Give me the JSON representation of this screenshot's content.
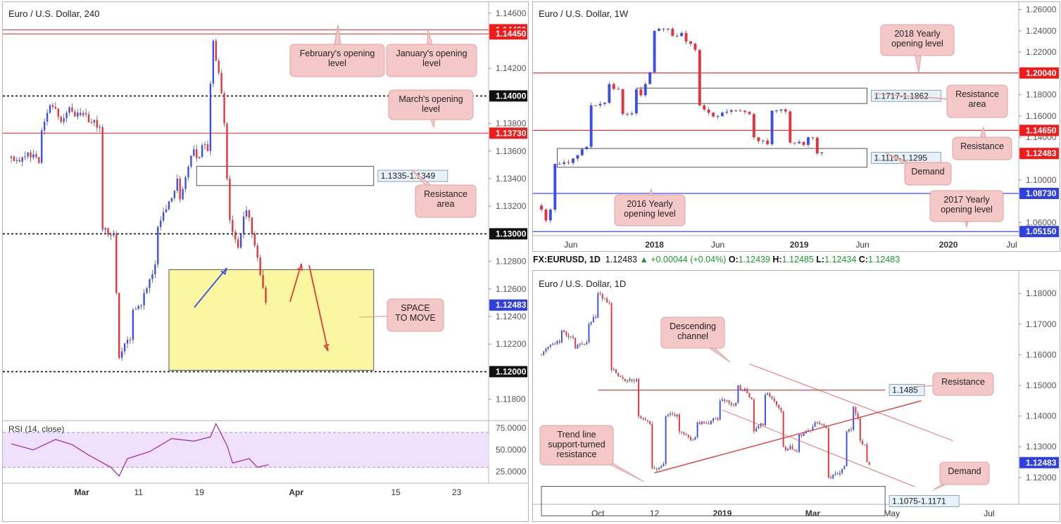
{
  "colors": {
    "bull": "#3b4fe8",
    "bear": "#e8313b",
    "red_line": "#e23b3b",
    "blue_line": "#3b4fe8",
    "zone_fill": "#fbf7a0",
    "zone_stroke": "#555555",
    "callout_fill": "#f5c8c8",
    "callout_stroke": "#e0a0a0",
    "label_red": "#f01b1b",
    "label_black": "#111111",
    "label_blue": "#2f3fe0",
    "rsi_band": "#efe0fb",
    "rsi_line": "#9c27b0"
  },
  "chart_data": [
    {
      "id": "h4",
      "type": "candlestick",
      "title": "Euro / U.S. Dollar, 240",
      "ylim": [
        1.1165,
        1.1465
      ],
      "y_ticks": [
        "1.14600",
        "1.14200",
        "1.13800",
        "1.13600",
        "1.13400",
        "1.13200",
        "1.12800",
        "1.12600",
        "1.12400",
        "1.12200",
        "1.11800"
      ],
      "y_tick_values": [
        1.146,
        1.142,
        1.138,
        1.136,
        1.134,
        1.132,
        1.128,
        1.126,
        1.124,
        1.122,
        1.118
      ],
      "x_ticks": [
        "Mar",
        "11",
        "19",
        "Apr",
        "15",
        "23"
      ],
      "x_tick_values": [
        25.5,
        46,
        68,
        103,
        139,
        161
      ],
      "x_range": [
        0,
        170
      ],
      "levels": [
        {
          "value": 1.1448,
          "label": "1.14480",
          "style": "red",
          "tag": "red"
        },
        {
          "value": 1.1445,
          "label": "1.14450",
          "style": "red",
          "tag": "red"
        },
        {
          "value": 1.14,
          "label": "1.14000",
          "style": "dotted",
          "tag": "black"
        },
        {
          "value": 1.1373,
          "label": "1.13730",
          "style": "red",
          "tag": "red"
        },
        {
          "value": 1.13,
          "label": "1.13000",
          "style": "dotted",
          "tag": "black"
        },
        {
          "value": 1.12,
          "label": "1.12000",
          "style": "dotted",
          "tag": "black"
        },
        {
          "value": 1.12483,
          "label": "1.12483",
          "style": "none",
          "tag": "blue"
        }
      ],
      "zones": [
        {
          "label": "1.1335-1.1349",
          "low": 1.1335,
          "high": 1.1349,
          "x0": 67,
          "x1": 131
        },
        {
          "label": "",
          "low": 1.1201,
          "high": 1.1274,
          "x0": 57,
          "x1": 131,
          "fill": "yellow"
        }
      ],
      "callouts": [
        "February's opening level",
        "January's opening level",
        "March's opening level",
        "Resistance area",
        "SPACE TO MOVE"
      ],
      "anchors": [
        {
          "x0": 0,
          "open": 1.1355,
          "drift": -0.0004
        },
        {
          "x0": 12,
          "open": 1.1375,
          "drift": 0.0012
        },
        {
          "x0": 18,
          "open": 1.1385,
          "drift": 0.0002
        },
        {
          "x0": 24,
          "open": 1.1385,
          "drift": -0.0015
        },
        {
          "x0": 34,
          "open": 1.1303,
          "drift": -0.0008
        },
        {
          "x0": 38,
          "open": 1.13,
          "drift": -0.0085
        },
        {
          "x0": 40,
          "open": 1.121,
          "drift": 0.002
        },
        {
          "x0": 45,
          "open": 1.1245,
          "drift": 0.004
        },
        {
          "x0": 54,
          "open": 1.1305,
          "drift": 0.0035
        },
        {
          "x0": 62,
          "open": 1.1325,
          "drift": 0.0035
        },
        {
          "x0": 68,
          "open": 1.1355,
          "drift": 0.002
        },
        {
          "x0": 72,
          "open": 1.136,
          "drift": 0.0095
        },
        {
          "x0": 74,
          "open": 1.144,
          "drift": -0.005
        },
        {
          "x0": 78,
          "open": 1.138,
          "drift": -0.004
        },
        {
          "x0": 79,
          "open": 1.134,
          "drift": -0.004
        },
        {
          "x0": 80,
          "open": 1.131,
          "drift": -0.0025
        },
        {
          "x0": 83,
          "open": 1.129,
          "drift": 0.0025
        },
        {
          "x0": 86,
          "open": 1.1317,
          "drift": -0.0012
        },
        {
          "x0": 88,
          "open": 1.13,
          "drift": -0.0025
        },
        {
          "x0": 91,
          "open": 1.127,
          "drift": -0.002
        },
        {
          "x0": 93,
          "open": 1.125,
          "drift": -0.0002
        }
      ],
      "n_candles": 93,
      "rsi": {
        "label": "RSI (14, close)",
        "ticks": [
          "75.0000",
          "50.0000",
          "25.0000"
        ],
        "tick_values": [
          75,
          50,
          25
        ],
        "band": [
          30,
          70
        ],
        "ylim": [
          15,
          82
        ],
        "path": [
          [
            0,
            57
          ],
          [
            8,
            50
          ],
          [
            16,
            62
          ],
          [
            22,
            56
          ],
          [
            28,
            44
          ],
          [
            36,
            30
          ],
          [
            39,
            20
          ],
          [
            42,
            40
          ],
          [
            50,
            48
          ],
          [
            58,
            63
          ],
          [
            66,
            60
          ],
          [
            72,
            65
          ],
          [
            74,
            80
          ],
          [
            78,
            55
          ],
          [
            80,
            35
          ],
          [
            86,
            40
          ],
          [
            89,
            30
          ],
          [
            93,
            33
          ]
        ]
      }
    },
    {
      "id": "w1",
      "type": "candlestick",
      "title": "Euro / U.S. Dollar, 1W",
      "ylim": [
        1.049,
        1.263
      ],
      "y_ticks": [
        "1.26000",
        "1.24000",
        "1.22000",
        "1.18000",
        "1.16000",
        "1.14000",
        "1.10000",
        "1.06000"
      ],
      "y_tick_values": [
        1.26,
        1.24,
        1.22,
        1.18,
        1.16,
        1.14,
        1.1,
        1.06
      ],
      "x_ticks": [
        "Jun",
        "2018",
        "Jun",
        "2019",
        "Jun",
        "2020",
        "Jul"
      ],
      "x_tick_values": [
        6.5,
        25,
        39,
        57,
        71,
        90,
        104
      ],
      "x_range": [
        0,
        104
      ],
      "levels": [
        {
          "value": 1.2004,
          "label": "1.20040",
          "style": "red",
          "tag": "red"
        },
        {
          "value": 1.1465,
          "label": "1.14650",
          "style": "red",
          "tag": "red"
        },
        {
          "value": 1.12483,
          "label": "1.12483",
          "style": "none",
          "tag": "red"
        },
        {
          "value": 1.0873,
          "label": "1.08730",
          "style": "blue",
          "tag": "blue"
        },
        {
          "value": 1.0515,
          "label": "1.05150",
          "style": "blue",
          "tag": "blue"
        }
      ],
      "zones": [
        {
          "label": "1.1717-1.1862",
          "low": 1.1717,
          "high": 1.1862,
          "x0": 21,
          "x1": 72
        },
        {
          "label": "1.1119-1.1295",
          "low": 1.1119,
          "high": 1.1295,
          "x0": 3.5,
          "x1": 72
        }
      ],
      "callouts": [
        "2018 Yearly opening level",
        "Resistance area",
        "Resistance",
        "Demand",
        "2016 Yearly opening level",
        "2017 Yearly opening level"
      ],
      "anchors": [
        {
          "x0": 0,
          "open": 1.076,
          "drift": -0.005
        },
        {
          "x0": 2,
          "open": 1.062,
          "drift": 0.02
        },
        {
          "x0": 4,
          "open": 1.115,
          "drift": 0.0025
        },
        {
          "x0": 8,
          "open": 1.12,
          "drift": 0.0125
        },
        {
          "x0": 12,
          "open": 1.17,
          "drift": 0.007
        },
        {
          "x0": 16,
          "open": 1.19,
          "drift": -0.009
        },
        {
          "x0": 19,
          "open": 1.162,
          "drift": 0.008
        },
        {
          "x0": 22,
          "open": 1.185,
          "drift": -0.005
        },
        {
          "x0": 24,
          "open": 1.19,
          "drift": 0.018
        },
        {
          "x0": 26,
          "open": 1.24,
          "drift": -0.004
        },
        {
          "x0": 30,
          "open": 1.235,
          "drift": 0.0
        },
        {
          "x0": 33,
          "open": 1.23,
          "drift": -0.015
        },
        {
          "x0": 36,
          "open": 1.17,
          "drift": -0.006
        },
        {
          "x0": 40,
          "open": 1.16,
          "drift": 0.002
        },
        {
          "x0": 44,
          "open": 1.165,
          "drift": -0.0045
        },
        {
          "x0": 48,
          "open": 1.14,
          "drift": -0.003
        },
        {
          "x0": 52,
          "open": 1.165,
          "drift": -0.0055
        },
        {
          "x0": 56,
          "open": 1.135,
          "drift": 0.0005
        },
        {
          "x0": 60,
          "open": 1.14,
          "drift": -0.003
        },
        {
          "x0": 62,
          "open": 1.125,
          "drift": 0.0
        }
      ],
      "n_candles": 63
    },
    {
      "id": "d1",
      "type": "candlestick",
      "title": "Euro / U.S. Dollar, 1D",
      "ylim": [
        1.114,
        1.186
      ],
      "y_ticks": [
        "1.18000",
        "1.17000",
        "1.16000",
        "1.15000",
        "1.14000",
        "1.13000",
        "1.12000"
      ],
      "y_tick_values": [
        1.18,
        1.17,
        1.16,
        1.15,
        1.14,
        1.13,
        1.12
      ],
      "x_ticks": [
        "Oct",
        "12",
        "2019",
        "Mar",
        "May",
        "Jul"
      ],
      "x_tick_values": [
        25,
        50,
        80,
        120,
        155,
        198
      ],
      "x_range": [
        0,
        208
      ],
      "levels": [
        {
          "value": 1.1485,
          "label": "1.1485",
          "style": "red",
          "tag": "zone",
          "x0": 25
        },
        {
          "value": 1.12483,
          "label": "1.12483",
          "style": "none",
          "tag": "blue"
        }
      ],
      "zones": [
        {
          "label": "1.1075-1.1171",
          "low": 1.1075,
          "high": 1.1171,
          "x0": 0,
          "x1": 152
        }
      ],
      "callouts": [
        "Descending channel",
        "Resistance",
        "Trend line support-turned resistance",
        "Demand"
      ],
      "anchors": [
        {
          "x0": 0,
          "open": 1.16,
          "drift": 0.001
        },
        {
          "x0": 10,
          "open": 1.168,
          "drift": -0.002
        },
        {
          "x0": 16,
          "open": 1.162,
          "drift": 0.0015
        },
        {
          "x0": 22,
          "open": 1.17,
          "drift": 0.003
        },
        {
          "x0": 26,
          "open": 1.18,
          "drift": -0.004
        },
        {
          "x0": 32,
          "open": 1.155,
          "drift": -0.0018
        },
        {
          "x0": 44,
          "open": 1.14,
          "drift": -0.0025
        },
        {
          "x0": 50,
          "open": 1.123,
          "drift": 0.003
        },
        {
          "x0": 56,
          "open": 1.14,
          "drift": -0.0015
        },
        {
          "x0": 62,
          "open": 1.135,
          "drift": 0.0
        },
        {
          "x0": 70,
          "open": 1.138,
          "drift": 0.001
        },
        {
          "x0": 80,
          "open": 1.145,
          "drift": 0.0016
        },
        {
          "x0": 88,
          "open": 1.15,
          "drift": -0.0025
        },
        {
          "x0": 95,
          "open": 1.135,
          "drift": 0.0015
        },
        {
          "x0": 100,
          "open": 1.147,
          "drift": -0.003
        },
        {
          "x0": 108,
          "open": 1.13,
          "drift": -0.0012
        },
        {
          "x0": 115,
          "open": 1.134,
          "drift": 0.001
        },
        {
          "x0": 122,
          "open": 1.138,
          "drift": -0.0018
        },
        {
          "x0": 128,
          "open": 1.12,
          "drift": 0.002
        },
        {
          "x0": 136,
          "open": 1.135,
          "drift": 0.0025
        },
        {
          "x0": 139,
          "open": 1.143,
          "drift": -0.0035
        },
        {
          "x0": 142,
          "open": 1.132,
          "drift": -0.0018
        },
        {
          "x0": 145,
          "open": 1.125,
          "drift": 0.0
        }
      ],
      "n_candles": 146
    }
  ],
  "header": {
    "symbol": "FX:EURUSD, 1D",
    "last": "1.12483",
    "change": "+0.00044 (+0.04%)",
    "o_label": "O:",
    "o_val": "1.12439",
    "h_label": "H:",
    "h_val": "1.12485",
    "l_label": "L:",
    "l_val": "1.12434",
    "c_label": "C:",
    "c_val": "1.12483"
  }
}
